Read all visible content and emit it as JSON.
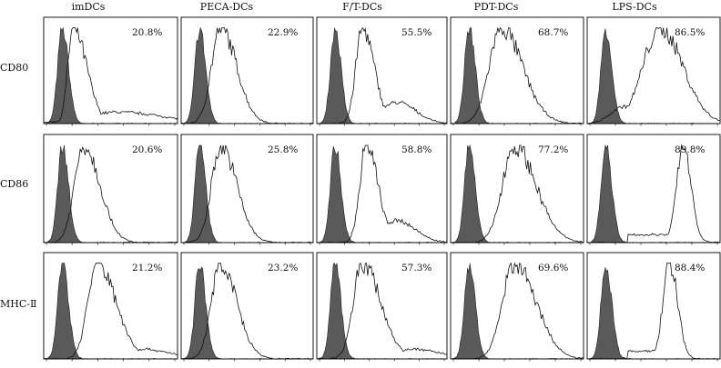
{
  "figure": {
    "columns": [
      "imDCs",
      "PECA-DCs",
      "F/T-DCs",
      "PDT-DCs",
      "LPS-DCs"
    ],
    "rows": [
      "CD80",
      "CD86",
      "MHC-Ⅱ"
    ]
  },
  "chart_data": {
    "type": "histogram-grid",
    "title": "",
    "xlabel": "",
    "ylabel": "",
    "x_scale": "log",
    "rows": [
      {
        "marker": "CD80",
        "panels": [
          {
            "group": "imDCs",
            "percent": "20.8%",
            "isotype_peak": 0.14,
            "stain_peak": 0.22,
            "stain_shape": "right-skewed-long-tail"
          },
          {
            "group": "PECA-DCs",
            "percent": "22.9%",
            "isotype_peak": 0.14,
            "stain_peak": 0.3,
            "stain_shape": "unimodal"
          },
          {
            "group": "F/T-DCs",
            "percent": "55.5%",
            "isotype_peak": 0.14,
            "stain_peak": 0.35,
            "stain_shape": "peak-with-shoulder"
          },
          {
            "group": "PDT-DCs",
            "percent": "68.7%",
            "isotype_peak": 0.14,
            "stain_peak": 0.38,
            "stain_shape": "broad"
          },
          {
            "group": "LPS-DCs",
            "percent": "86.5%",
            "isotype_peak": 0.14,
            "stain_peak": 0.55,
            "stain_shape": "broad-right-shifted"
          }
        ]
      },
      {
        "marker": "CD86",
        "panels": [
          {
            "group": "imDCs",
            "percent": "20.6%",
            "isotype_peak": 0.14,
            "stain_peak": 0.3,
            "stain_shape": "unimodal"
          },
          {
            "group": "PECA-DCs",
            "percent": "25.8%",
            "isotype_peak": 0.14,
            "stain_peak": 0.3,
            "stain_shape": "unimodal"
          },
          {
            "group": "F/T-DCs",
            "percent": "58.8%",
            "isotype_peak": 0.14,
            "stain_peak": 0.38,
            "stain_shape": "peak-with-shoulder"
          },
          {
            "group": "PDT-DCs",
            "percent": "77.2%",
            "isotype_peak": 0.14,
            "stain_peak": 0.48,
            "stain_shape": "broad"
          },
          {
            "group": "LPS-DCs",
            "percent": "89.8%",
            "isotype_peak": 0.14,
            "stain_peak": 0.72,
            "stain_shape": "narrow-right-shifted"
          }
        ]
      },
      {
        "marker": "MHC-Ⅱ",
        "panels": [
          {
            "group": "imDCs",
            "percent": "21.2%",
            "isotype_peak": 0.14,
            "stain_peak": 0.4,
            "stain_shape": "broad-long-tail"
          },
          {
            "group": "PECA-DCs",
            "percent": "23.2%",
            "isotype_peak": 0.14,
            "stain_peak": 0.3,
            "stain_shape": "unimodal"
          },
          {
            "group": "F/T-DCs",
            "percent": "57.3%",
            "isotype_peak": 0.14,
            "stain_peak": 0.35,
            "stain_shape": "broad-long-tail"
          },
          {
            "group": "PDT-DCs",
            "percent": "69.6%",
            "isotype_peak": 0.14,
            "stain_peak": 0.48,
            "stain_shape": "broad"
          },
          {
            "group": "LPS-DCs",
            "percent": "88.4%",
            "isotype_peak": 0.14,
            "stain_peak": 0.62,
            "stain_shape": "narrow-right-shifted"
          }
        ]
      }
    ]
  }
}
